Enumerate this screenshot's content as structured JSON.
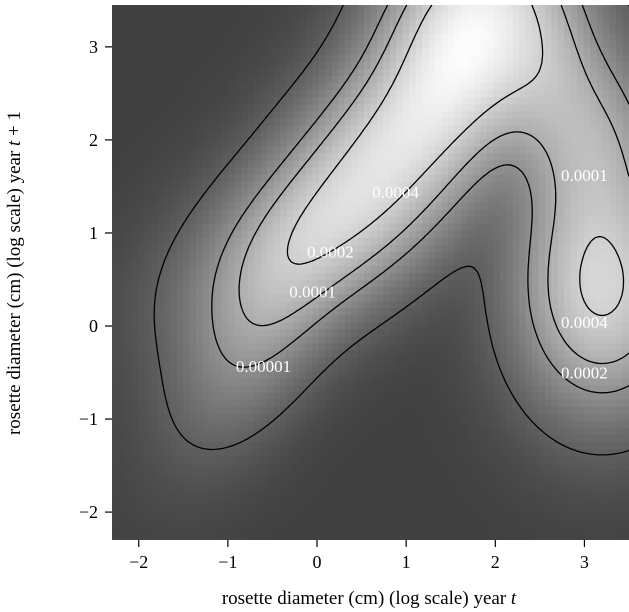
{
  "chart_data": {
    "type": "heatmap",
    "title": "",
    "xlabel_prefix": "rosette diameter (cm) (log scale) year ",
    "xlabel_var": "t",
    "ylabel_prefix": "rosette diameter (cm) (log scale) year ",
    "ylabel_var": "t",
    "ylabel_suffix": " + 1",
    "xlim": [
      -2.3,
      3.5
    ],
    "ylim": [
      -2.3,
      3.45
    ],
    "x_ticks": [
      -2,
      -1,
      0,
      1,
      2,
      3
    ],
    "y_ticks": [
      -2,
      -1,
      0,
      1,
      2,
      3
    ],
    "colormap": {
      "low": "#404040",
      "high": "#ffffff"
    },
    "grid": false,
    "contour_levels": [
      "0.00001",
      "0.0001",
      "0.0002",
      "0.0004"
    ],
    "contour_labels": [
      {
        "text": "0.00001",
        "x": -0.6,
        "y": -0.45
      },
      {
        "text": "0.0001",
        "x": -0.05,
        "y": 0.35
      },
      {
        "text": "0.0002",
        "x": 0.15,
        "y": 0.78
      },
      {
        "text": "0.0004",
        "x": 0.88,
        "y": 1.42
      },
      {
        "text": "0.0001",
        "x": 3.0,
        "y": 1.6
      },
      {
        "text": "0.0004",
        "x": 3.0,
        "y": 0.02
      },
      {
        "text": "0.0002",
        "x": 3.0,
        "y": -0.52
      }
    ]
  }
}
